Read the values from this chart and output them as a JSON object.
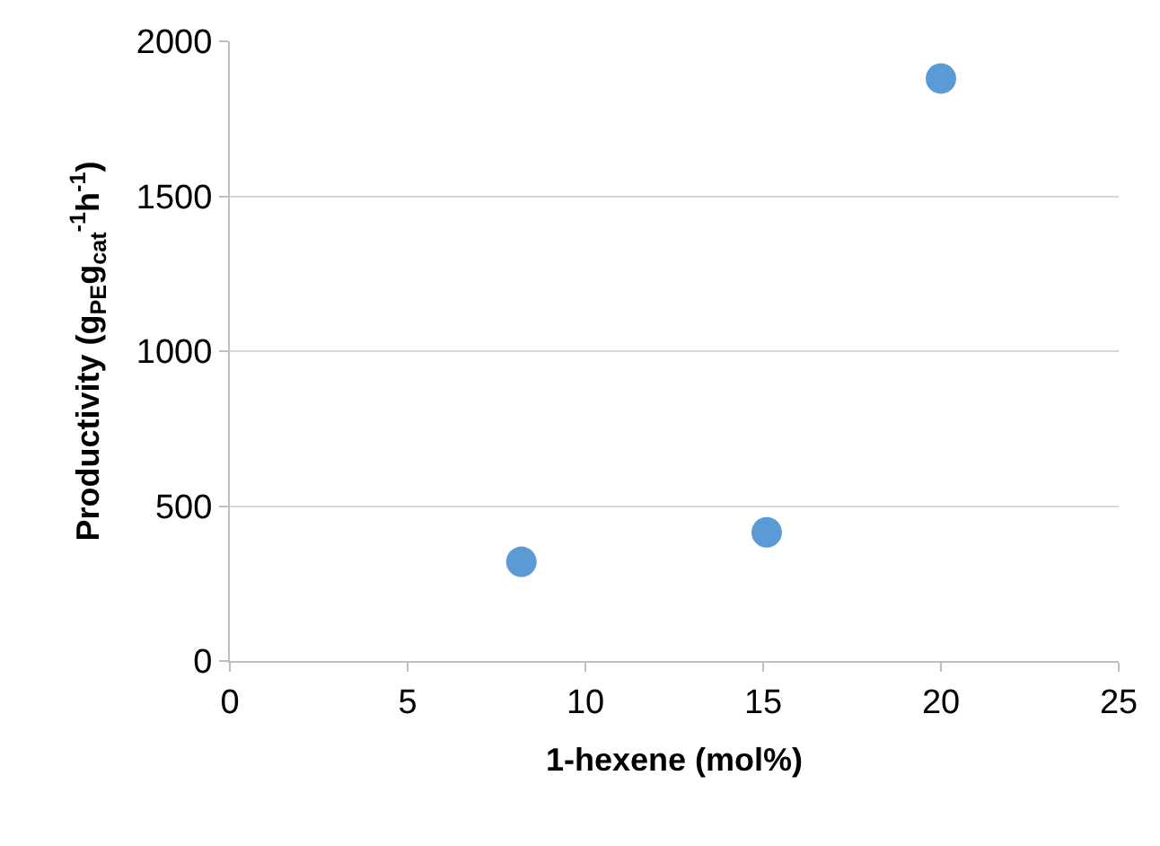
{
  "chart_data": {
    "type": "scatter",
    "xlabel": "1-hexene (mol%)",
    "ylabel": "Productivity (g$_{PE}$g$_{cat}$$^{-1}$h$^{-1}$)",
    "x": [
      8.2,
      15.1,
      20
    ],
    "series": [
      {
        "color": "#5b9bd5",
        "values": [
          320,
          415,
          1880
        ]
      }
    ],
    "xlim": [
      0,
      25
    ],
    "xticks": [
      0,
      5,
      10,
      15,
      20,
      25
    ],
    "ylim": [
      0,
      2000
    ],
    "yticks": [
      0,
      500,
      1000,
      1500,
      2000
    ],
    "grid": "y",
    "marker": "circle"
  }
}
